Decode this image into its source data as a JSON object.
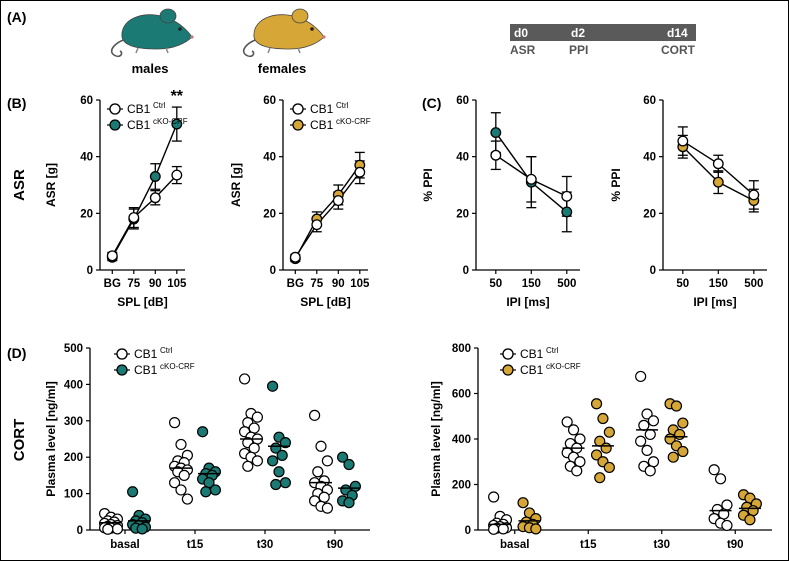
{
  "panel_labels": {
    "A": "(A)",
    "B": "(B)",
    "C": "(C)",
    "D": "(D)"
  },
  "mice": {
    "male_label": "males",
    "female_label": "females"
  },
  "timeline": {
    "steps": [
      {
        "day": "d0",
        "test": "ASR"
      },
      {
        "day": "d2",
        "test": "PPI"
      },
      {
        "day": "d14",
        "test": "CORT"
      }
    ]
  },
  "row_labels": {
    "asr": "ASR",
    "cort": "CORT"
  },
  "legend": {
    "ctrl_base": "CB1",
    "ctrl_sup": "Ctrl",
    "cko_base": "CB1",
    "cko_sup": "cKO-CRF"
  },
  "colors": {
    "teal": "#1b7a74",
    "gold": "#d6a737",
    "timeline_bar": "#5a5a5a",
    "open": "#ffffff"
  },
  "chart_data": [
    {
      "id": "asr_males",
      "type": "line",
      "xlabel": "SPL [dB]",
      "ylabel": "ASR [g]",
      "categories": [
        "BG",
        "75",
        "90",
        "105"
      ],
      "ylim": [
        0,
        60
      ],
      "yticks": [
        0,
        20,
        40,
        60
      ],
      "series": [
        {
          "name": "CB1 Ctrl",
          "style": "open",
          "values": [
            5,
            18.5,
            25.5,
            33.5
          ],
          "err": [
            1.2,
            3.5,
            2.5,
            3
          ]
        },
        {
          "name": "CB1 cKO-CRF",
          "style": "teal",
          "values": [
            4.5,
            18,
            33,
            51.5
          ],
          "err": [
            1.2,
            3.5,
            4.5,
            6
          ]
        }
      ],
      "annotation": {
        "text": "**",
        "category": "105"
      }
    },
    {
      "id": "asr_females",
      "type": "line",
      "xlabel": "SPL [dB]",
      "ylabel": "ASR [g]",
      "categories": [
        "BG",
        "75",
        "90",
        "105"
      ],
      "ylim": [
        0,
        60
      ],
      "yticks": [
        0,
        20,
        40,
        60
      ],
      "series": [
        {
          "name": "CB1 Ctrl",
          "style": "open",
          "values": [
            4.5,
            16,
            24.5,
            34.5
          ],
          "err": [
            1,
            2.5,
            3,
            4
          ]
        },
        {
          "name": "CB1 cKO-CRF",
          "style": "gold",
          "values": [
            4,
            18,
            26.5,
            37
          ],
          "err": [
            1,
            2.5,
            3.5,
            4.5
          ]
        }
      ]
    },
    {
      "id": "ppi_males",
      "type": "line",
      "xlabel": "IPI [ms]",
      "ylabel": "% PPI",
      "categories": [
        "50",
        "150",
        "500"
      ],
      "ylim": [
        0,
        60
      ],
      "yticks": [
        0,
        20,
        40,
        60
      ],
      "series": [
        {
          "name": "CB1 Ctrl",
          "style": "open",
          "values": [
            40.5,
            32,
            26
          ],
          "err": [
            5,
            8,
            7
          ]
        },
        {
          "name": "CB1 cKO-CRF",
          "style": "teal",
          "values": [
            48.5,
            31,
            20.5
          ],
          "err": [
            7,
            9,
            7
          ]
        }
      ]
    },
    {
      "id": "ppi_females",
      "type": "line",
      "xlabel": "IPI [ms]",
      "ylabel": "% PPI",
      "categories": [
        "50",
        "150",
        "500"
      ],
      "ylim": [
        0,
        60
      ],
      "yticks": [
        0,
        20,
        40,
        60
      ],
      "series": [
        {
          "name": "CB1 Ctrl",
          "style": "open",
          "values": [
            45.5,
            37.5,
            26.5
          ],
          "err": [
            5,
            3,
            5
          ]
        },
        {
          "name": "CB1 cKO-CRF",
          "style": "gold",
          "values": [
            43.5,
            31,
            24.5
          ],
          "err": [
            4,
            4,
            4
          ]
        }
      ]
    },
    {
      "id": "cort_males",
      "type": "scatter",
      "ylabel": "Plasma level [ng/ml]",
      "categories": [
        "basal",
        "t15",
        "t30",
        "t90"
      ],
      "ylim": [
        0,
        500
      ],
      "yticks": [
        0,
        100,
        200,
        300,
        400,
        500
      ],
      "series": [
        {
          "name": "CB1 Ctrl",
          "style": "open",
          "means": [
            20,
            170,
            250,
            130
          ],
          "points": [
            [
              45,
              35,
              30,
              25,
              22,
              18,
              15,
              12,
              10,
              8,
              6,
              5,
              3,
              2
            ],
            [
              295,
              235,
              205,
              190,
              185,
              175,
              170,
              165,
              160,
              150,
              130,
              110,
              85
            ],
            [
              415,
              320,
              310,
              295,
              280,
              270,
              255,
              250,
              240,
              225,
              210,
              200,
              190,
              175
            ],
            [
              315,
              230,
              190,
              160,
              135,
              130,
              120,
              110,
              100,
              90,
              80,
              65,
              60
            ]
          ]
        },
        {
          "name": "CB1 cKO-CRF",
          "style": "teal",
          "means": [
            25,
            155,
            230,
            115
          ],
          "points": [
            [
              105,
              40,
              30,
              25,
              20,
              15,
              12,
              8,
              5,
              3
            ],
            [
              270,
              170,
              160,
              155,
              150,
              140,
              130,
              110,
              105
            ],
            [
              395,
              255,
              240,
              225,
              205,
              190,
              160,
              130,
              125
            ],
            [
              200,
              180,
              120,
              110,
              95,
              80,
              75
            ]
          ]
        }
      ]
    },
    {
      "id": "cort_females",
      "type": "scatter",
      "ylabel": "Plasma level [ng/ml]",
      "categories": [
        "basal",
        "t15",
        "t30",
        "t90"
      ],
      "ylim": [
        0,
        800
      ],
      "yticks": [
        0,
        200,
        400,
        600,
        800
      ],
      "series": [
        {
          "name": "CB1 Ctrl",
          "style": "open",
          "means": [
            25,
            360,
            440,
            85
          ],
          "points": [
            [
              145,
              60,
              45,
              30,
              25,
              20,
              15,
              10,
              8,
              5,
              3
            ],
            [
              475,
              440,
              400,
              380,
              360,
              340,
              320,
              300,
              280,
              260
            ],
            [
              675,
              510,
              480,
              460,
              420,
              390,
              350,
              300,
              280,
              260
            ],
            [
              265,
              225,
              110,
              90,
              70,
              50,
              30,
              20
            ]
          ]
        },
        {
          "name": "CB1 cKO-CRF",
          "style": "gold",
          "means": [
            40,
            370,
            410,
            95
          ],
          "points": [
            [
              120,
              75,
              50,
              35,
              25,
              15,
              10,
              5
            ],
            [
              555,
              490,
              430,
              390,
              360,
              330,
              300,
              275,
              230
            ],
            [
              555,
              545,
              470,
              440,
              420,
              400,
              370,
              345,
              320
            ],
            [
              155,
              140,
              115,
              100,
              85,
              65,
              45
            ]
          ]
        }
      ]
    }
  ]
}
